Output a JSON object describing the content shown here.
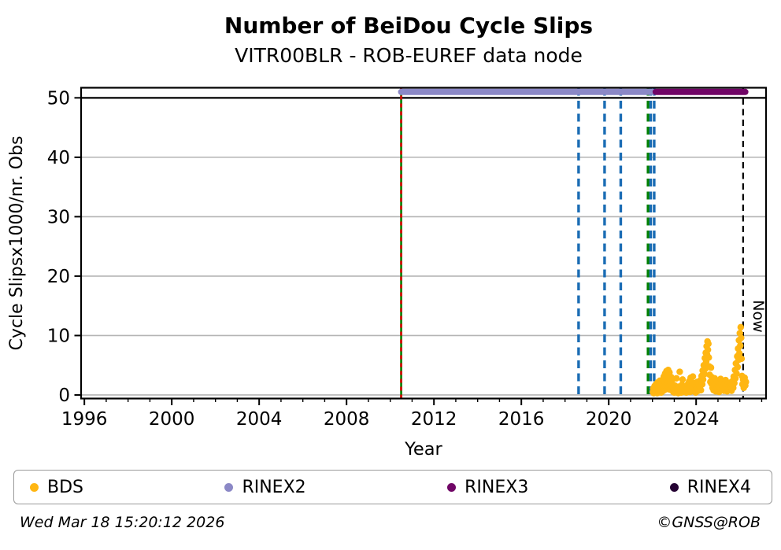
{
  "chart_data": {
    "type": "scatter",
    "title": "Number of BeiDou Cycle Slips",
    "subtitle": "VITR00BLR - ROB-EUREF data node",
    "xlabel": "Year",
    "ylabel": "Cycle Slipsx1000/nr. Obs",
    "xlim": [
      1995.85,
      2027.2
    ],
    "ylim": [
      -0.6,
      51.7
    ],
    "x_major_ticks": [
      1996,
      2000,
      2004,
      2008,
      2012,
      2016,
      2020,
      2024
    ],
    "y_ticks": [
      0,
      10,
      20,
      30,
      40,
      50
    ],
    "grid_gray_lines": [
      0,
      10,
      20,
      30,
      40
    ],
    "grid_black_lines": [
      50
    ],
    "grid_on": true,
    "legend_position": "bottom",
    "now_label": "Now",
    "availability_bars": [
      {
        "name": "RINEX2",
        "color": "#8B88C6",
        "y": 51,
        "from": 2010.5,
        "to": 2022.0
      },
      {
        "name": "RINEX3",
        "color": "#700566",
        "y": 51,
        "from": 2022.15,
        "to": 2026.25
      }
    ],
    "event_lines": [
      {
        "x": 2010.5,
        "color": "#008000",
        "style": "solid",
        "width": 2.6,
        "dash": ""
      },
      {
        "x": 2010.5,
        "color": "#E00000",
        "style": "dashed",
        "width": 2.6,
        "dash": "5,5"
      },
      {
        "x": 2018.62,
        "color": "#1A6CB4",
        "style": "dashed",
        "width": 3.4,
        "dash": "10,6.5"
      },
      {
        "x": 2019.81,
        "color": "#1A6CB4",
        "style": "dashed",
        "width": 3.4,
        "dash": "10,6.5"
      },
      {
        "x": 2020.55,
        "color": "#1A6CB4",
        "style": "dashed",
        "width": 3.4,
        "dash": "10,6.5"
      },
      {
        "x": 2021.8,
        "color": "#008000",
        "style": "dashed",
        "width": 3.4,
        "dash": "10,6.5"
      },
      {
        "x": 2021.92,
        "color": "#1A6CB4",
        "style": "dashed",
        "width": 3.4,
        "dash": "10,6.5"
      },
      {
        "x": 2022.08,
        "color": "#1A6CB4",
        "style": "dashed",
        "width": 3.4,
        "dash": "10,6.5"
      },
      {
        "x": 2026.15,
        "color": "#000000",
        "style": "dashed",
        "width": 2.2,
        "dash": "8,5.5",
        "label": "Now"
      }
    ],
    "series": [
      {
        "name": "BDS",
        "color": "#FFB612",
        "marker": "dot",
        "points": [
          [
            2022.02,
            0.5
          ],
          [
            2022.04,
            1.1
          ],
          [
            2022.06,
            0.3
          ],
          [
            2022.08,
            0.8
          ],
          [
            2022.1,
            1.5
          ],
          [
            2022.12,
            0.4
          ],
          [
            2022.14,
            0.9
          ],
          [
            2022.16,
            1.8
          ],
          [
            2022.18,
            0.6
          ],
          [
            2022.2,
            1.2
          ],
          [
            2022.22,
            0.3
          ],
          [
            2022.24,
            2.1
          ],
          [
            2022.26,
            0.7
          ],
          [
            2022.28,
            1.4
          ],
          [
            2022.3,
            0.5
          ],
          [
            2022.32,
            1.0
          ],
          [
            2022.34,
            2.4
          ],
          [
            2022.36,
            0.8
          ],
          [
            2022.38,
            1.6
          ],
          [
            2022.4,
            0.4
          ],
          [
            2022.42,
            1.1
          ],
          [
            2022.44,
            1.9
          ],
          [
            2022.46,
            0.6
          ],
          [
            2022.48,
            2.6
          ],
          [
            2022.5,
            1.2
          ],
          [
            2022.52,
            3.1
          ],
          [
            2022.54,
            0.8
          ],
          [
            2022.56,
            2.2
          ],
          [
            2022.58,
            3.6
          ],
          [
            2022.6,
            1.5
          ],
          [
            2022.62,
            2.9
          ],
          [
            2022.64,
            4.0
          ],
          [
            2022.66,
            1.0
          ],
          [
            2022.68,
            3.3
          ],
          [
            2022.7,
            2.0
          ],
          [
            2022.72,
            4.2
          ],
          [
            2022.74,
            1.4
          ],
          [
            2022.76,
            2.7
          ],
          [
            2022.78,
            3.8
          ],
          [
            2022.8,
            0.9
          ],
          [
            2022.82,
            2.3
          ],
          [
            2022.84,
            1.7
          ],
          [
            2022.86,
            3.0
          ],
          [
            2022.88,
            1.1
          ],
          [
            2022.9,
            2.5
          ],
          [
            2022.92,
            0.7
          ],
          [
            2022.94,
            1.3
          ],
          [
            2022.96,
            0.5
          ],
          [
            2022.98,
            1.0
          ],
          [
            2023.0,
            0.4
          ],
          [
            2023.02,
            1.6
          ],
          [
            2023.05,
            0.7
          ],
          [
            2023.08,
            1.2
          ],
          [
            2023.1,
            2.8
          ],
          [
            2023.12,
            0.5
          ],
          [
            2023.15,
            1.0
          ],
          [
            2023.18,
            0.3
          ],
          [
            2023.2,
            1.4
          ],
          [
            2023.22,
            0.8
          ],
          [
            2023.25,
            3.9
          ],
          [
            2023.28,
            0.6
          ],
          [
            2023.3,
            1.1
          ],
          [
            2023.32,
            0.4
          ],
          [
            2023.35,
            1.7
          ],
          [
            2023.38,
            2.6
          ],
          [
            2023.4,
            0.9
          ],
          [
            2023.42,
            1.3
          ],
          [
            2023.45,
            0.5
          ],
          [
            2023.48,
            1.0
          ],
          [
            2023.5,
            0.7
          ],
          [
            2023.52,
            1.5
          ],
          [
            2023.55,
            0.4
          ],
          [
            2023.58,
            1.2
          ],
          [
            2023.6,
            0.6
          ],
          [
            2023.62,
            1.8
          ],
          [
            2023.65,
            0.9
          ],
          [
            2023.68,
            2.3
          ],
          [
            2023.7,
            1.1
          ],
          [
            2023.72,
            0.5
          ],
          [
            2023.75,
            2.9
          ],
          [
            2023.78,
            1.6
          ],
          [
            2023.8,
            0.8
          ],
          [
            2023.82,
            2.1
          ],
          [
            2023.85,
            3.1
          ],
          [
            2023.88,
            1.3
          ],
          [
            2023.9,
            0.6
          ],
          [
            2023.92,
            1.9
          ],
          [
            2023.95,
            1.0
          ],
          [
            2023.98,
            0.4
          ],
          [
            2024.0,
            1.5
          ],
          [
            2024.02,
            0.9
          ],
          [
            2024.05,
            2.2
          ],
          [
            2024.08,
            1.2
          ],
          [
            2024.1,
            0.7
          ],
          [
            2024.12,
            1.7
          ],
          [
            2024.15,
            1.0
          ],
          [
            2024.18,
            1.4
          ],
          [
            2024.2,
            2.5
          ],
          [
            2024.22,
            0.8
          ],
          [
            2024.25,
            3.2
          ],
          [
            2024.28,
            1.8
          ],
          [
            2024.3,
            4.1
          ],
          [
            2024.32,
            2.6
          ],
          [
            2024.35,
            5.0
          ],
          [
            2024.38,
            3.5
          ],
          [
            2024.4,
            6.2
          ],
          [
            2024.42,
            4.4
          ],
          [
            2024.44,
            7.1
          ],
          [
            2024.46,
            5.6
          ],
          [
            2024.48,
            8.2
          ],
          [
            2024.5,
            6.8
          ],
          [
            2024.52,
            9.0
          ],
          [
            2024.54,
            7.6
          ],
          [
            2024.56,
            8.6
          ],
          [
            2024.58,
            6.3
          ],
          [
            2024.6,
            4.8
          ],
          [
            2024.62,
            3.4
          ],
          [
            2024.65,
            2.2
          ],
          [
            2024.68,
            4.6
          ],
          [
            2024.7,
            1.9
          ],
          [
            2024.72,
            3.0
          ],
          [
            2024.75,
            1.2
          ],
          [
            2024.78,
            2.4
          ],
          [
            2024.8,
            0.8
          ],
          [
            2024.82,
            1.6
          ],
          [
            2024.85,
            2.8
          ],
          [
            2024.88,
            1.1
          ],
          [
            2024.9,
            0.6
          ],
          [
            2024.92,
            1.9
          ],
          [
            2024.95,
            1.3
          ],
          [
            2024.98,
            2.3
          ],
          [
            2025.0,
            0.9
          ],
          [
            2025.02,
            1.5
          ],
          [
            2025.05,
            0.5
          ],
          [
            2025.08,
            2.0
          ],
          [
            2025.1,
            1.2
          ],
          [
            2025.12,
            2.7
          ],
          [
            2025.15,
            0.8
          ],
          [
            2025.18,
            1.6
          ],
          [
            2025.2,
            1.0
          ],
          [
            2025.22,
            2.2
          ],
          [
            2025.25,
            1.4
          ],
          [
            2025.28,
            0.7
          ],
          [
            2025.3,
            1.8
          ],
          [
            2025.32,
            1.1
          ],
          [
            2025.35,
            2.5
          ],
          [
            2025.38,
            0.9
          ],
          [
            2025.4,
            1.5
          ],
          [
            2025.42,
            0.6
          ],
          [
            2025.45,
            1.9
          ],
          [
            2025.48,
            1.2
          ],
          [
            2025.5,
            0.8
          ],
          [
            2025.52,
            1.6
          ],
          [
            2025.55,
            1.0
          ],
          [
            2025.58,
            2.1
          ],
          [
            2025.6,
            1.3
          ],
          [
            2025.62,
            0.7
          ],
          [
            2025.65,
            1.7
          ],
          [
            2025.68,
            2.4
          ],
          [
            2025.7,
            1.2
          ],
          [
            2025.72,
            3.1
          ],
          [
            2025.75,
            2.0
          ],
          [
            2025.78,
            4.2
          ],
          [
            2025.8,
            2.8
          ],
          [
            2025.82,
            5.3
          ],
          [
            2025.85,
            3.6
          ],
          [
            2025.88,
            6.5
          ],
          [
            2025.9,
            4.7
          ],
          [
            2025.92,
            7.8
          ],
          [
            2025.94,
            5.9
          ],
          [
            2025.96,
            9.2
          ],
          [
            2025.98,
            7.0
          ],
          [
            2026.0,
            10.4
          ],
          [
            2026.02,
            8.3
          ],
          [
            2026.04,
            11.4
          ],
          [
            2026.06,
            9.6
          ],
          [
            2026.08,
            6.1
          ],
          [
            2026.1,
            3.2
          ],
          [
            2026.12,
            1.8
          ],
          [
            2026.15,
            2.6
          ],
          [
            2026.18,
            1.2
          ],
          [
            2026.22,
            2.9
          ],
          [
            2026.25,
            1.6
          ],
          [
            2026.28,
            2.2
          ]
        ]
      }
    ],
    "legend": [
      {
        "label": "BDS",
        "color": "#FFB612"
      },
      {
        "label": "RINEX2",
        "color": "#8B88C6"
      },
      {
        "label": "RINEX3",
        "color": "#700566"
      },
      {
        "label": "RINEX4",
        "color": "#250233"
      }
    ],
    "footer_left": "Wed Mar 18 15:20:12 2026",
    "footer_right": "©GNSS@ROB"
  }
}
